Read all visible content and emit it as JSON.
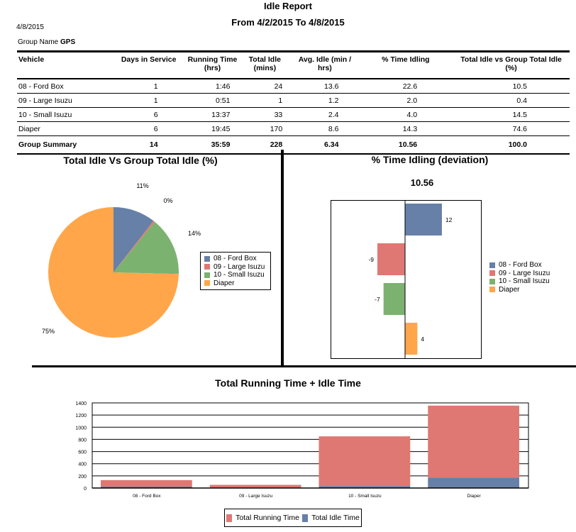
{
  "report": {
    "title": "Idle Report",
    "date_range": "From 4/2/2015  To 4/8/2015",
    "print_date": "4/8/2015",
    "group_label": "Group Name",
    "group_value": "GPS"
  },
  "colors": {
    "ford": "#6680a8",
    "large": "#df7872",
    "small": "#7cb26f",
    "diaper": "#ffa64b"
  },
  "table": {
    "headers": [
      "Vehicle",
      "Days in Service",
      "Running Time (hrs)",
      "Total Idle (mins)",
      "Avg. Idle (min / hrs)",
      "% Time Idling",
      "Total Idle vs Group Total Idle (%)"
    ],
    "rows": [
      [
        "08 - Ford Box",
        "1",
        "1:46",
        "24",
        "13.6",
        "22.6",
        "10.5"
      ],
      [
        "09 - Large Isuzu",
        "1",
        "0:51",
        "1",
        "1.2",
        "2.0",
        "0.4"
      ],
      [
        "10 - Small Isuzu",
        "6",
        "13:37",
        "33",
        "2.4",
        "4.0",
        "14.5"
      ],
      [
        "Diaper",
        "6",
        "19:45",
        "170",
        "8.6",
        "14.3",
        "74.6"
      ]
    ],
    "summary": [
      "Group Summary",
      "14",
      "35:59",
      "228",
      "6.34",
      "10.56",
      "100.0"
    ]
  },
  "chart_data": [
    {
      "type": "pie",
      "title": "Total Idle Vs Group Total Idle (%)",
      "categories": [
        "08 - Ford Box",
        "09 - Large Isuzu",
        "10 - Small Isuzu",
        "Diaper"
      ],
      "values": [
        10.5,
        0.4,
        14.5,
        74.6
      ],
      "labels": [
        "11%",
        "0%",
        "14%",
        "75%"
      ],
      "legend": "right"
    },
    {
      "type": "bar",
      "orientation": "horizontal",
      "title": "% Time Idling  (deviation)",
      "subtitle": "10.56",
      "categories": [
        "08 - Ford Box",
        "09 - Large Isuzu",
        "10 - Small Isuzu",
        "Diaper"
      ],
      "values": [
        12,
        -9,
        -7,
        4
      ],
      "xlim": [
        -24,
        25
      ],
      "legend": "right"
    },
    {
      "type": "bar",
      "stacked": true,
      "title": "Total Running Time + Idle Time",
      "categories": [
        "08 - Ford Box",
        "09 - Large Isuzu",
        "10 - Small Isuzu",
        "Diaper"
      ],
      "series": [
        {
          "name": "Total Running Time",
          "values": [
            106,
            51,
            817,
            1185
          ]
        },
        {
          "name": "Total  Idle Time",
          "values": [
            24,
            1,
            33,
            170
          ]
        }
      ],
      "ylim": [
        0,
        1400
      ],
      "yticks": [
        0,
        200,
        400,
        600,
        800,
        1000,
        1200,
        1400
      ],
      "grid": true,
      "legend": "bottom"
    }
  ]
}
